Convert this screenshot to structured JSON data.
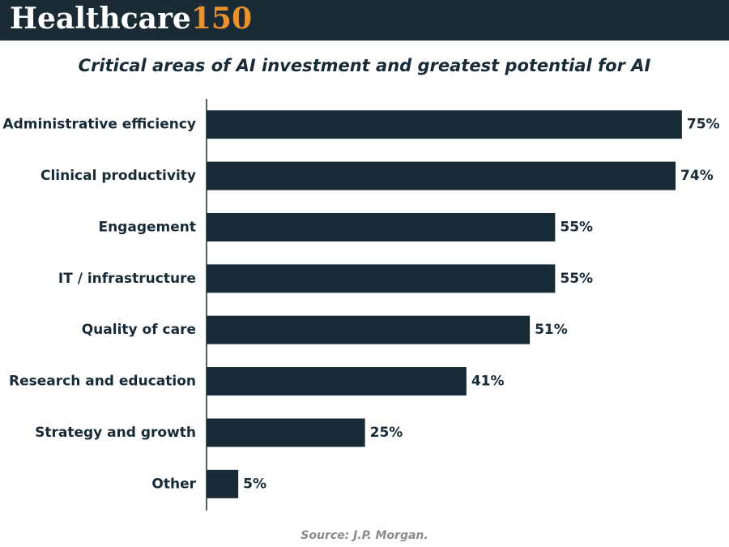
{
  "logo": {
    "text": "Healthcare",
    "number": "150"
  },
  "chart_data": {
    "type": "hbar",
    "title": "Critical areas of AI investment and greatest potential for AI",
    "categories": [
      "Administrative efficiency",
      "Clinical productivity",
      "Engagement",
      "IT / infrastructure",
      "Quality of care",
      "Research and education",
      "Strategy and growth",
      "Other"
    ],
    "values": [
      75,
      74,
      55,
      55,
      51,
      41,
      25,
      5
    ],
    "value_labels": [
      "75%",
      "74%",
      "55%",
      "55%",
      "51%",
      "41%",
      "25%",
      "5%"
    ],
    "color": "#172a36",
    "xlim": [
      0,
      80
    ],
    "source": "Source: J.P. Morgan."
  }
}
